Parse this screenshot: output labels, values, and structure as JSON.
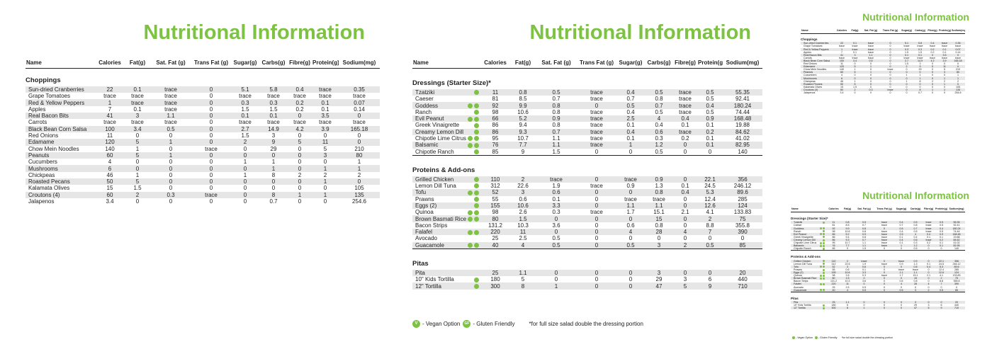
{
  "title": "Nutritional Information",
  "columns": [
    "Name",
    "Calories",
    "Fat(g)",
    "Sat. Fat (g)",
    "Trans Fat (g)",
    "Sugar(g)",
    "Carbs(g)",
    "Fibre(g)",
    "Protein(g)",
    "Sodium(mg)"
  ],
  "columns_right_page": [
    "Name",
    "Calories",
    "Fat(g)",
    "Sat. Fat (g)",
    "Trans Fat (g)",
    "Sugar(g)",
    "Carbs(g)",
    "Fibre(g)",
    "Protein(g)",
    "Sodium(mg)"
  ],
  "choppings": {
    "heading": "Choppings",
    "rows": [
      {
        "name": "Sun-dried Cranberries",
        "vals": [
          "22",
          "0.1",
          "trace",
          "0",
          "5.1",
          "5.8",
          "0.4",
          "trace",
          "0.35"
        ]
      },
      {
        "name": "Grape Tomatoes",
        "vals": [
          "trace",
          "trace",
          "trace",
          "0",
          "trace",
          "trace",
          "trace",
          "trace",
          "trace"
        ]
      },
      {
        "name": "Red & Yellow Peppers",
        "vals": [
          "1",
          "trace",
          "trace",
          "0",
          "0.3",
          "0.3",
          "0.2",
          "0.1",
          "0.07"
        ]
      },
      {
        "name": "Apples",
        "vals": [
          "7",
          "0.1",
          "trace",
          "0",
          "1.5",
          "1.5",
          "0.2",
          "0.1",
          "0.14"
        ]
      },
      {
        "name": "Real Bacon Bits",
        "vals": [
          "41",
          "3",
          "1.1",
          "0",
          "0.1",
          "0.1",
          "0",
          "3.5",
          "0"
        ]
      },
      {
        "name": "Carrots",
        "vals": [
          "trace",
          "trace",
          "trace",
          "0",
          "trace",
          "trace",
          "trace",
          "trace",
          "trace"
        ]
      },
      {
        "name": "Black Bean Corn Salsa",
        "vals": [
          "100",
          "3.4",
          "0.5",
          "0",
          "2.7",
          "14.9",
          "4.2",
          "3.9",
          "165.18"
        ]
      },
      {
        "name": "Red Onions",
        "vals": [
          "11",
          "0",
          "0",
          "0",
          "1.5",
          "3",
          "0",
          "0",
          "0"
        ]
      },
      {
        "name": "Edamame",
        "vals": [
          "120",
          "5",
          "1",
          "0",
          "2",
          "9",
          "5",
          "11",
          "0"
        ]
      },
      {
        "name": "Chow Mein Noodles",
        "vals": [
          "140",
          "1",
          "0",
          "trace",
          "0",
          "29",
          "0",
          "5",
          "210"
        ]
      },
      {
        "name": "Peanuts",
        "vals": [
          "60",
          "5",
          "1",
          "0",
          "0",
          "0",
          "0",
          "3",
          "80"
        ]
      },
      {
        "name": "Cucumbers",
        "vals": [
          "4",
          "0",
          "0",
          "0",
          "1",
          "1",
          "0",
          "0",
          "1"
        ]
      },
      {
        "name": "Mushrooms",
        "vals": [
          "6",
          "0",
          "0",
          "0",
          "0",
          "1",
          "0",
          "1",
          "1"
        ]
      },
      {
        "name": "Chickpeas",
        "vals": [
          "46",
          "1",
          "0",
          "0",
          "1",
          "8",
          "2",
          "2",
          "2"
        ]
      },
      {
        "name": "Roasted Pecans",
        "vals": [
          "50",
          "5",
          "0",
          "0",
          "0",
          "0",
          "0",
          "1",
          "0"
        ]
      },
      {
        "name": "Kalamata Olives",
        "vals": [
          "15",
          "1.5",
          "0",
          "0",
          "0",
          "0",
          "0",
          "0",
          "105"
        ]
      },
      {
        "name": "Croutons (4)",
        "vals": [
          "60",
          "2",
          "0.3",
          "trace",
          "0",
          "8",
          "1",
          "1",
          "135"
        ]
      },
      {
        "name": "Jalapenos",
        "vals": [
          "3.4",
          "0",
          "0",
          "0",
          "0",
          "0.7",
          "0",
          "0",
          "254.6"
        ]
      }
    ]
  },
  "dressings": {
    "heading": "Dressings (Starter Size)*",
    "rows": [
      {
        "name": "Tzatziki",
        "v": false,
        "g": true,
        "vals": [
          "11",
          "0.8",
          "0.5",
          "trace",
          "0.4",
          "0.5",
          "trace",
          "0.5",
          "55.35"
        ]
      },
      {
        "name": "Caeser",
        "v": false,
        "g": false,
        "vals": [
          "81",
          "8.5",
          "0.7",
          "trace",
          "0.7",
          "0.8",
          "trace",
          "0.5",
          "92.41"
        ]
      },
      {
        "name": "Goddess",
        "v": true,
        "g": true,
        "vals": [
          "92",
          "9.9",
          "0.8",
          "0",
          "0.5",
          "0.7",
          "trace",
          "0.4",
          "180.24"
        ]
      },
      {
        "name": "Ranch",
        "v": false,
        "g": true,
        "vals": [
          "98",
          "10.6",
          "0.8",
          "trace",
          "0.4",
          "0.5",
          "trace",
          "0.5",
          "74.44"
        ]
      },
      {
        "name": "Evil Peanut",
        "v": true,
        "g": true,
        "vals": [
          "66",
          "5.2",
          "0.9",
          "trace",
          "2.5",
          "4",
          "0.4",
          "0.9",
          "168.48"
        ]
      },
      {
        "name": "Greek Vinaigrette",
        "v": false,
        "g": true,
        "vals": [
          "86",
          "9.4",
          "0.8",
          "trace",
          "0.1",
          "0.4",
          "0.1",
          "0.1",
          "19.88"
        ]
      },
      {
        "name": "Creamy Lemon Dill",
        "v": false,
        "g": true,
        "vals": [
          "86",
          "9.3",
          "0.7",
          "trace",
          "0.4",
          "0.6",
          "trace",
          "0.2",
          "84.62"
        ]
      },
      {
        "name": "Chipotle Lime Citrus",
        "v": true,
        "g": true,
        "vals": [
          "95",
          "10.7",
          "1.1",
          "trace",
          "0.1",
          "0.3",
          "0.2",
          "0.1",
          "41.02"
        ]
      },
      {
        "name": "Balsamic",
        "v": true,
        "g": true,
        "vals": [
          "76",
          "7.7",
          "1.1",
          "trace",
          "1",
          "1.2",
          "0",
          "0.1",
          "82.95"
        ]
      },
      {
        "name": "Chipotle Ranch",
        "v": false,
        "g": true,
        "vals": [
          "85",
          "9",
          "1.5",
          "0",
          "0",
          "0.5",
          "0",
          "0",
          "140"
        ]
      }
    ]
  },
  "proteins": {
    "heading": "Proteins & Add-ons",
    "rows": [
      {
        "name": "Grilled Chicken",
        "v": false,
        "g": true,
        "vals": [
          "110",
          "2",
          "trace",
          "0",
          "trace",
          "0.9",
          "0",
          "22.1",
          "356"
        ]
      },
      {
        "name": "Lemon Dill Tuna",
        "v": false,
        "g": true,
        "vals": [
          "312",
          "22.6",
          "1.9",
          "trace",
          "0.9",
          "1.3",
          "0.1",
          "24.5",
          "246.12"
        ]
      },
      {
        "name": "Tofu",
        "v": true,
        "g": true,
        "vals": [
          "52",
          "3",
          "0.6",
          "0",
          "0",
          "0.8",
          "0.4",
          "5.3",
          "89.6"
        ]
      },
      {
        "name": "Prawns",
        "v": false,
        "g": true,
        "vals": [
          "55",
          "0.6",
          "0.1",
          "0",
          "trace",
          "trace",
          "0",
          "12.4",
          "285"
        ]
      },
      {
        "name": "Eggs (2)",
        "v": false,
        "g": true,
        "vals": [
          "155",
          "10.6",
          "3.3",
          "0",
          "1.1",
          "1.1",
          "0",
          "12.6",
          "124"
        ]
      },
      {
        "name": "Quinoa",
        "v": true,
        "g": true,
        "vals": [
          "98",
          "2.6",
          "0.3",
          "trace",
          "1.7",
          "15.1",
          "2.1",
          "4.1",
          "133.83"
        ]
      },
      {
        "name": "Brown Basmati Rice",
        "v": true,
        "g": true,
        "vals": [
          "80",
          "1.5",
          "0",
          "0",
          "0",
          "15",
          "0",
          "2",
          "75"
        ]
      },
      {
        "name": "Bacon Strips",
        "v": false,
        "g": false,
        "vals": [
          "131.2",
          "10.3",
          "3.6",
          "0",
          "0.6",
          "0.8",
          "0",
          "8.8",
          "355.8"
        ]
      },
      {
        "name": "Falafel",
        "v": true,
        "g": true,
        "vals": [
          "220",
          "11",
          "0",
          "0",
          "4",
          "28",
          "4",
          "7",
          "390"
        ]
      },
      {
        "name": "Avocado",
        "v": false,
        "g": false,
        "vals": [
          "25",
          "2.5",
          "0.5",
          "0",
          "0",
          "0",
          "0",
          "0",
          "0"
        ]
      },
      {
        "name": "Guacamole",
        "v": true,
        "g": true,
        "vals": [
          "40",
          "4",
          "0.5",
          "0",
          "0.5",
          "3",
          "2",
          "0.5",
          "85"
        ]
      }
    ]
  },
  "pitas": {
    "heading": "Pitas",
    "rows": [
      {
        "name": "Pita",
        "v": false,
        "g": false,
        "vals": [
          "25",
          "1.1",
          "0",
          "0",
          "0",
          "3",
          "0",
          "0",
          "20"
        ]
      },
      {
        "name": "10\" Kids Tortilla",
        "v": false,
        "g": true,
        "vals": [
          "180",
          "5",
          "0",
          "0",
          "0",
          "29",
          "3",
          "6",
          "440"
        ]
      },
      {
        "name": "12\" Tortilla",
        "v": false,
        "g": true,
        "vals": [
          "300",
          "8",
          "1",
          "0",
          "0",
          "47",
          "5",
          "9",
          "710"
        ]
      }
    ]
  },
  "legend": {
    "vegan_badge": "V",
    "vegan_label": "- Vegan Option",
    "gf_badge": "GF",
    "gf_label": "- Gluten Friendly",
    "note": "*for full size salad double the dressing portion"
  },
  "colors": {
    "accent": "#7dc242",
    "stripe": "#e6e6e6"
  }
}
